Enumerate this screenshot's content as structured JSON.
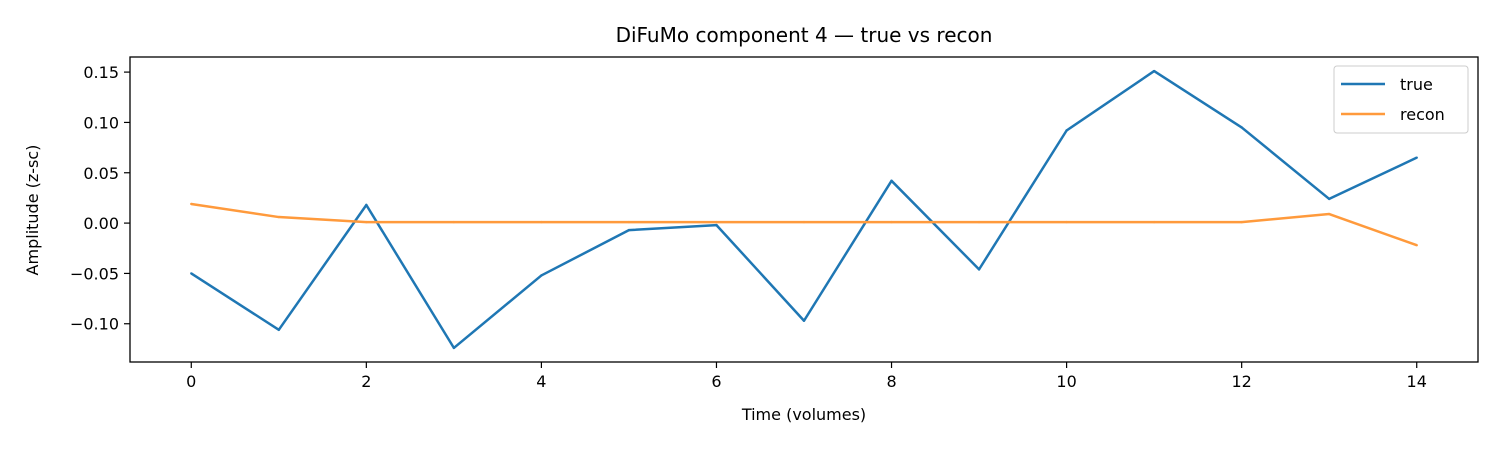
{
  "chart_data": {
    "type": "line",
    "title": "DiFuMo component 4 — true vs recon",
    "xlabel": "Time (volumes)",
    "ylabel": "Amplitude (z-sc)",
    "xlim": [
      -0.7,
      14.7
    ],
    "ylim": [
      -0.138,
      0.165
    ],
    "xticks": [
      0,
      2,
      4,
      6,
      8,
      10,
      12,
      14
    ],
    "yticks": [
      -0.1,
      -0.05,
      0.0,
      0.05,
      0.1,
      0.15
    ],
    "ytick_labels": [
      "−0.10",
      "−0.05",
      "0.00",
      "0.05",
      "0.10",
      "0.15"
    ],
    "x": [
      0,
      1,
      2,
      3,
      4,
      5,
      6,
      7,
      8,
      9,
      10,
      11,
      12,
      13,
      14
    ],
    "series": [
      {
        "name": "true",
        "color": "#1f77b4",
        "values": [
          -0.05,
          -0.106,
          0.018,
          -0.124,
          -0.052,
          -0.007,
          -0.002,
          -0.097,
          0.042,
          -0.046,
          0.092,
          0.151,
          0.095,
          0.024,
          0.065
        ]
      },
      {
        "name": "recon",
        "color": "#ff9a3c",
        "values": [
          0.019,
          0.006,
          0.001,
          0.001,
          0.001,
          0.001,
          0.001,
          0.001,
          0.001,
          0.001,
          0.001,
          0.001,
          0.001,
          0.009,
          -0.022
        ]
      }
    ],
    "grid": false,
    "legend_position": "top-right"
  }
}
